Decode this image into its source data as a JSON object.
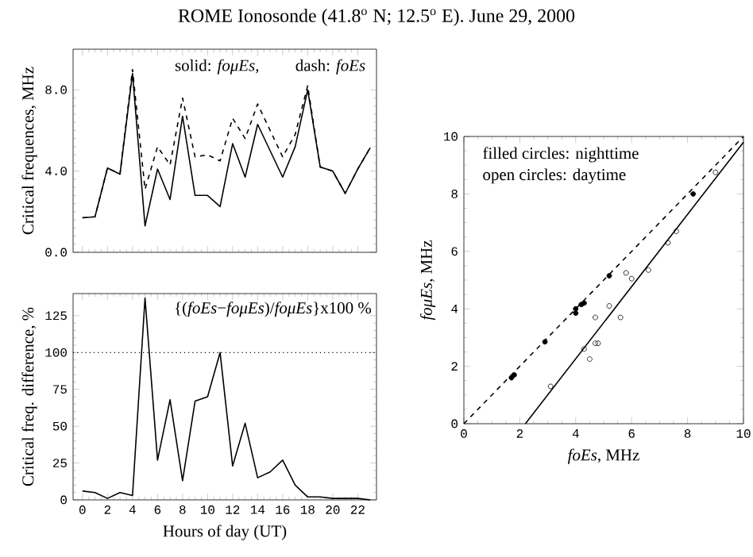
{
  "chart_data": [
    {
      "type": "line",
      "title": "ROME Ionosonde (41.8$^{o}$ N; 12.5$^{o}$ E).  June 29, 2000",
      "ylabel": "Critical frequences, MHz",
      "annotations": [
        "solid: *foμEs*,",
        "dash: *foEs*"
      ],
      "x": [
        0,
        1,
        2,
        3,
        4,
        5,
        6,
        7,
        8,
        9,
        10,
        11,
        12,
        13,
        14,
        15,
        16,
        17,
        18,
        19,
        20,
        21,
        22,
        23
      ],
      "xlim": [
        -0.75,
        23.5
      ],
      "xticks": [
        0,
        2,
        4,
        6,
        8,
        10,
        12,
        14,
        16,
        18,
        20,
        22
      ],
      "tick_labels": "y",
      "ylim": [
        0,
        10
      ],
      "yticks": [
        {
          "value": 0,
          "label": "0.0"
        },
        {
          "value": 4,
          "label": "4.0"
        },
        {
          "value": 8,
          "label": "8.0"
        }
      ],
      "series": [
        {
          "color": "#000000",
          "line_style": "dashed",
          "values": [
            1.7,
            1.75,
            4.15,
            3.85,
            9.0,
            3.1,
            5.2,
            4.3,
            7.6,
            4.7,
            4.8,
            4.5,
            6.6,
            5.6,
            7.3,
            6.0,
            4.7,
            5.8,
            8.2,
            4.2,
            4.0,
            2.9,
            4.1,
            5.15
          ]
        },
        {
          "color": "#000000",
          "line_style": "solid",
          "values": [
            1.7,
            1.75,
            4.15,
            3.85,
            8.8,
            1.3,
            4.1,
            2.6,
            6.7,
            2.8,
            2.8,
            2.25,
            5.35,
            3.7,
            6.3,
            5.0,
            3.7,
            5.2,
            8.0,
            4.2,
            4.0,
            2.9,
            4.1,
            5.15
          ]
        }
      ]
    },
    {
      "type": "line",
      "xlabel": "Hours of day (UT)",
      "ylabel": "Critical freq. difference, %",
      "annotations": [
        "{(*foEs*−*foμEs*)/*foμEs*}x100 %"
      ],
      "x": [
        0,
        1,
        2,
        3,
        4,
        5,
        6,
        7,
        8,
        9,
        10,
        11,
        12,
        13,
        14,
        15,
        16,
        17,
        18,
        19,
        20,
        21,
        22,
        23
      ],
      "xlim": [
        -0.75,
        23.5
      ],
      "xticks": [
        0,
        2,
        4,
        6,
        8,
        10,
        12,
        14,
        16,
        18,
        20,
        22
      ],
      "ylim": [
        0,
        140
      ],
      "yticks": [
        0,
        25,
        50,
        75,
        100,
        125
      ],
      "ref_lines": [
        {
          "axis": "y",
          "value": 100,
          "line_style": "dotted"
        }
      ],
      "series": [
        {
          "color": "#000000",
          "values": [
            6,
            5,
            1,
            5,
            3,
            137,
            27,
            68,
            13,
            67,
            70,
            100,
            23,
            52,
            15,
            19,
            27,
            10,
            2,
            2,
            1,
            1,
            1,
            0
          ]
        }
      ]
    },
    {
      "type": "scatter",
      "xlabel": "*foEs*, MHz",
      "ylabel": "*foμEs*, MHz",
      "annotations": [
        "filled circles: nighttime",
        "open circles: daytime"
      ],
      "xlim": [
        0,
        10
      ],
      "ylim": [
        0,
        10
      ],
      "xticks": [
        0,
        2,
        4,
        6,
        8,
        10
      ],
      "yticks": [
        0,
        2,
        4,
        6,
        8,
        10
      ],
      "series": [
        {
          "color": "#000000",
          "marker": "circle",
          "x": [
            1.7,
            1.8,
            2.9,
            4.0,
            4.0,
            4.2,
            4.3,
            5.2,
            8.2
          ],
          "values": [
            1.6,
            1.7,
            2.85,
            3.85,
            4.0,
            4.15,
            4.2,
            5.15,
            8.0
          ]
        },
        {
          "color": "#000000",
          "marker": "circle_open",
          "x": [
            3.1,
            4.3,
            4.5,
            4.7,
            4.7,
            4.8,
            5.2,
            5.6,
            5.8,
            6.0,
            6.6,
            7.3,
            7.6,
            9.0
          ],
          "values": [
            1.3,
            2.6,
            2.25,
            3.7,
            2.8,
            2.8,
            4.1,
            3.7,
            5.25,
            5.05,
            5.35,
            6.3,
            6.7,
            8.75
          ]
        },
        {
          "type": "line",
          "color": "#000000",
          "line_style": "dashed",
          "x": [
            0,
            10
          ],
          "values": [
            0,
            10
          ]
        },
        {
          "type": "line",
          "color": "#000000",
          "line_style": "solid",
          "x": [
            2.2,
            10
          ],
          "values": [
            0,
            9.8
          ]
        }
      ]
    }
  ]
}
